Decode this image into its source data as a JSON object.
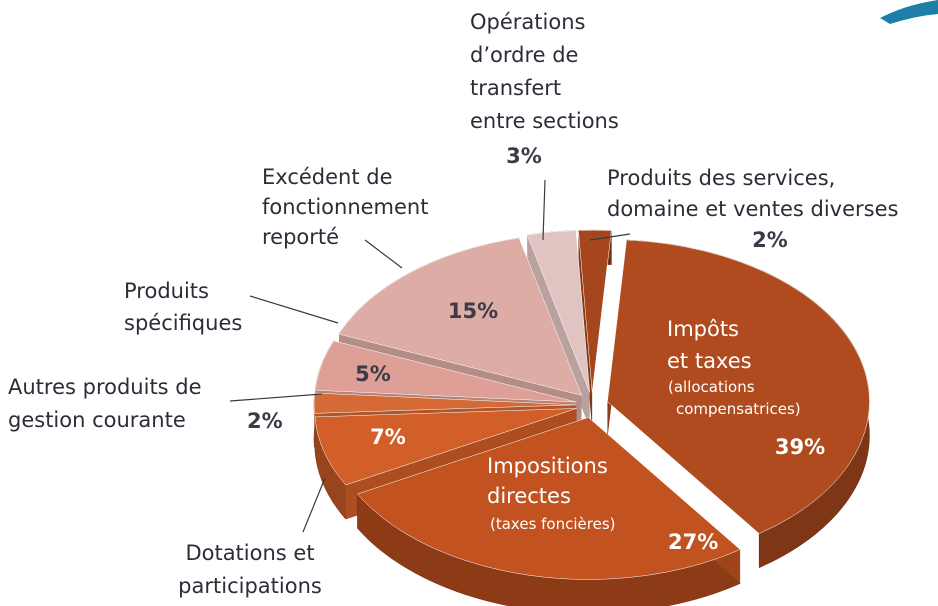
{
  "chart_data": {
    "type": "pie",
    "categories": [
      [
        "Produits des services,",
        "domaine et ventes diverses"
      ],
      [
        "Impôts",
        "et taxes"
      ],
      [
        "Impositions",
        "directes"
      ],
      [
        "Dotations et",
        "participations"
      ],
      [
        "Autres produits de",
        "gestion courante"
      ],
      [
        "Produits",
        "spécifiques"
      ],
      [
        "Excédent de",
        "fonctionnement",
        "reporté"
      ],
      [
        "Opérations",
        "d’ordre de",
        "transfert",
        "entre sections"
      ]
    ],
    "sublabels": {
      "1": [
        "(allocations",
        "compensatrices)"
      ],
      "2": [
        "(taxes foncières)"
      ]
    },
    "values": [
      2,
      39,
      27,
      7,
      2,
      5,
      15,
      3
    ],
    "value_labels": [
      "2%",
      "39%",
      "27%",
      "7%",
      "2%",
      "5%",
      "15%",
      "3%"
    ],
    "colors": [
      "#a5461c",
      "#b04b1f",
      "#c2521f",
      "#d35f28",
      "#d66a36",
      "#dea096",
      "#dcaca5",
      "#e0c4c1"
    ]
  }
}
